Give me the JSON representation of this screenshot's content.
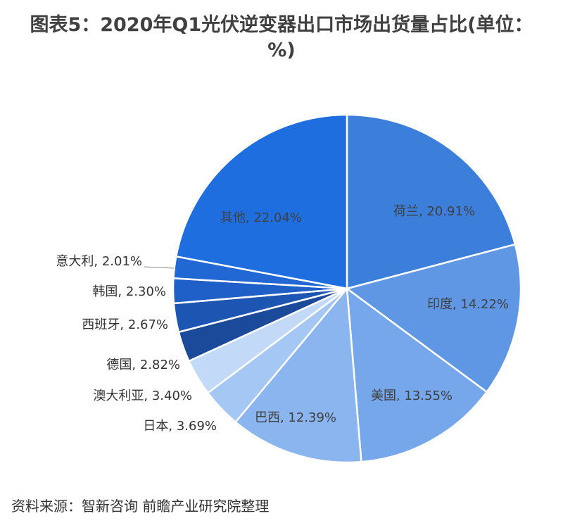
{
  "chart_data": {
    "type": "pie",
    "title": "图表5：2020年Q1光伏逆变器出口市场出货量占比(单位：%)",
    "slices": [
      {
        "label": "荷兰",
        "value": 20.91,
        "value_label": "20.91%",
        "color": "#3C7FDA"
      },
      {
        "label": "印度",
        "value": 14.22,
        "value_label": "14.22%",
        "color": "#5F97E5"
      },
      {
        "label": "美国",
        "value": 13.55,
        "value_label": "13.55%",
        "color": "#76A7EA"
      },
      {
        "label": "巴西",
        "value": 12.39,
        "value_label": "12.39%",
        "color": "#8AB5EF"
      },
      {
        "label": "日本",
        "value": 3.69,
        "value_label": "3.69%",
        "color": "#A4C7F3"
      },
      {
        "label": "澳大利亚",
        "value": 3.4,
        "value_label": "3.40%",
        "color": "#C2D9F7"
      },
      {
        "label": "德国",
        "value": 2.82,
        "value_label": "2.82%",
        "color": "#1B4A9A"
      },
      {
        "label": "西班牙",
        "value": 2.67,
        "value_label": "2.67%",
        "color": "#1D55B3"
      },
      {
        "label": "韩国",
        "value": 2.3,
        "value_label": "2.30%",
        "color": "#1F60C8"
      },
      {
        "label": "意大利",
        "value": 2.01,
        "value_label": "2.01%",
        "color": "#2268D4"
      },
      {
        "label": "其他",
        "value": 22.04,
        "value_label": "22.04%",
        "color": "#1E6EE0"
      }
    ],
    "start_angle_deg": 0,
    "direction": "clockwise",
    "legend": "none"
  },
  "source": "资料来源：智新咨询 前瞻产业研究院整理"
}
